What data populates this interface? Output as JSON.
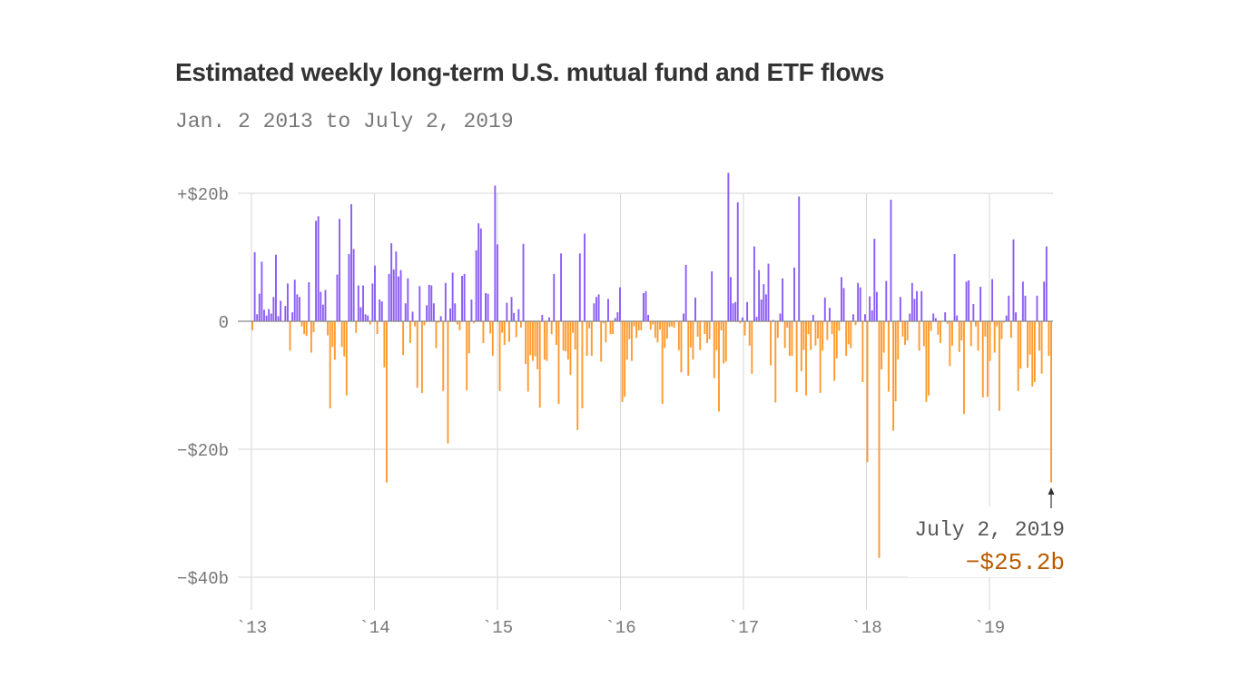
{
  "chart_data": {
    "type": "bar",
    "title": "Estimated weekly long-term U.S. mutual fund and ETF flows",
    "subtitle": "Jan. 2 2013 to July 2, 2019",
    "x_range": [
      "2013-01-02",
      "2019-07-02"
    ],
    "frequency": "weekly",
    "unit": "billion USD",
    "ylim": [
      -45,
      23.5
    ],
    "y_ticks": [
      {
        "value": 20,
        "label": "+$20b"
      },
      {
        "value": 0,
        "label": "0"
      },
      {
        "value": -20,
        "label": "−$20b"
      },
      {
        "value": -40,
        "label": "−$40b"
      }
    ],
    "x_ticks": [
      {
        "year": 2013,
        "label": "`13"
      },
      {
        "year": 2014,
        "label": "`14"
      },
      {
        "year": 2015,
        "label": "`15"
      },
      {
        "year": 2016,
        "label": "`16"
      },
      {
        "year": 2017,
        "label": "`17"
      },
      {
        "year": 2018,
        "label": "`18"
      },
      {
        "year": 2019,
        "label": "`19"
      }
    ],
    "grid": true,
    "colors": {
      "positive": "#8b5cf6",
      "negative": "#ff9a2e",
      "annotation_value": "#b85c00"
    },
    "annotation": {
      "date": "July 2, 2019",
      "value_label": "−$25.2b",
      "value": -25.2
    },
    "values": [
      -1.4,
      10.8,
      1.1,
      4.3,
      9.3,
      1.8,
      0.9,
      1.9,
      1.2,
      3.8,
      10.4,
      0.8,
      3.2,
      0,
      2.4,
      5.9,
      -4.6,
      1.4,
      6.5,
      4.2,
      3.8,
      -0.8,
      -2,
      -2.3,
      6.1,
      -4.9,
      -1.7,
      15.7,
      16.4,
      4.6,
      2.6,
      4.9,
      -2.2,
      -13.6,
      -4,
      -6,
      7.3,
      16,
      -4,
      -5.5,
      -11.6,
      10.5,
      18.3,
      11.3,
      -1.8,
      5.6,
      2.2,
      5.6,
      1.1,
      0.9,
      -0.5,
      5.9,
      8.7,
      -2,
      3.4,
      3.1,
      -7.2,
      -25.2,
      7.4,
      12.2,
      8.1,
      10.9,
      7,
      8,
      -5.3,
      2.8,
      6.7,
      -3.4,
      1.5,
      -0.8,
      -10.4,
      5.5,
      -11.2,
      -0.6,
      2.5,
      5.7,
      5.6,
      2.8,
      -4.2,
      -0.2,
      0.8,
      -10.9,
      6,
      -19.1,
      2,
      7.6,
      2.8,
      -0.5,
      -1.4,
      7.1,
      7.4,
      -10.8,
      -5,
      3.4,
      -0.3,
      11.1,
      15.3,
      14.5,
      -3.4,
      4.4,
      4.3,
      -1.9,
      -5.4,
      21.2,
      12,
      -10.9,
      -1.8,
      -3.7,
      2.9,
      -3.2,
      3.8,
      1.3,
      -2.5,
      1.9,
      -1,
      12.1,
      -6.7,
      -11,
      -5.3,
      -6.2,
      -5.5,
      -7.5,
      -13.5,
      1,
      -6,
      -6.2,
      0.6,
      -2,
      7.4,
      -3.7,
      -12.9,
      10.6,
      -4.6,
      -4.7,
      -6,
      -8.4,
      -1.8,
      -4.4,
      -17,
      10.6,
      -13.6,
      13.7,
      -5.4,
      -1.1,
      -5.4,
      2.8,
      3.8,
      4.2,
      -6.3,
      -0.3,
      -3.3,
      3.5,
      -2,
      -2,
      0.5,
      1.4,
      5.3,
      -12.6,
      -11.8,
      -6,
      -2.8,
      -6.2,
      -0.8,
      -2.6,
      -1.4,
      -1.4,
      4.4,
      4.7,
      1,
      -1.3,
      -0.5,
      -2.6,
      -3.3,
      -1.3,
      -12.9,
      -4.2,
      -2.7,
      -0.9,
      -0.8,
      -1,
      0.1,
      -4.5,
      -8,
      1.2,
      8.8,
      -8.5,
      -4.1,
      -6,
      3.7,
      -2.4,
      -4.5,
      0,
      -2,
      -3.4,
      -2.8,
      7.8,
      -8.9,
      -4.5,
      -14.1,
      -1.4,
      -6.6,
      -6.3,
      23.2,
      6.9,
      2.8,
      3,
      18.6,
      -0.3,
      0.6,
      -2.2,
      3,
      -3.8,
      -8.2,
      11.7,
      0.7,
      8,
      3.4,
      5.8,
      4.2,
      9,
      -6.9,
      0.2,
      -12.7,
      -2.6,
      1.2,
      6.7,
      -4.2,
      -1,
      -5.4,
      -5.4,
      8.4,
      -11.1,
      19.5,
      -7.8,
      -4.5,
      -11.6,
      -2,
      -4.5,
      1,
      -3.8,
      -2.7,
      -11.2,
      -4.6,
      3.7,
      -2.9,
      2.1,
      -2,
      -9.3,
      -5.8,
      -1.5,
      6.9,
      5.2,
      -5.4,
      -3.6,
      -4.2,
      1.1,
      -0.6,
      6,
      5.3,
      -9.5,
      1.1,
      -22,
      3.9,
      1.7,
      12.9,
      4.6,
      -37,
      -7.5,
      -4.9,
      6.3,
      -11,
      19,
      -17.1,
      -12.5,
      -6,
      3.8,
      -2.4,
      -3.7,
      -3,
      1.2,
      6,
      3.5,
      4.7,
      -4.6,
      4.7,
      -3.9,
      -12.6,
      -11.6,
      -1.5,
      1.2,
      0.5,
      -2.1,
      -3.4,
      0,
      1.4,
      -0.4,
      -7,
      -3.8,
      10.5,
      0.9,
      -4.8,
      -3,
      -14.5,
      6.2,
      6.4,
      -3.9,
      2.7,
      -0.8,
      -4.6,
      5.4,
      -11.9,
      -2.4,
      -11.8,
      -6.2,
      6.6,
      -4.9,
      -0.8,
      -14,
      -2.8,
      -0.2,
      0.9,
      4,
      -2.6,
      12.8,
      1.4,
      -10.9,
      -7.4,
      6.2,
      4,
      -7.3,
      -5.2,
      -10.2,
      -9.5,
      4,
      -4.6,
      -8.2,
      6.2,
      11.7,
      -5.4,
      -25.2
    ]
  }
}
